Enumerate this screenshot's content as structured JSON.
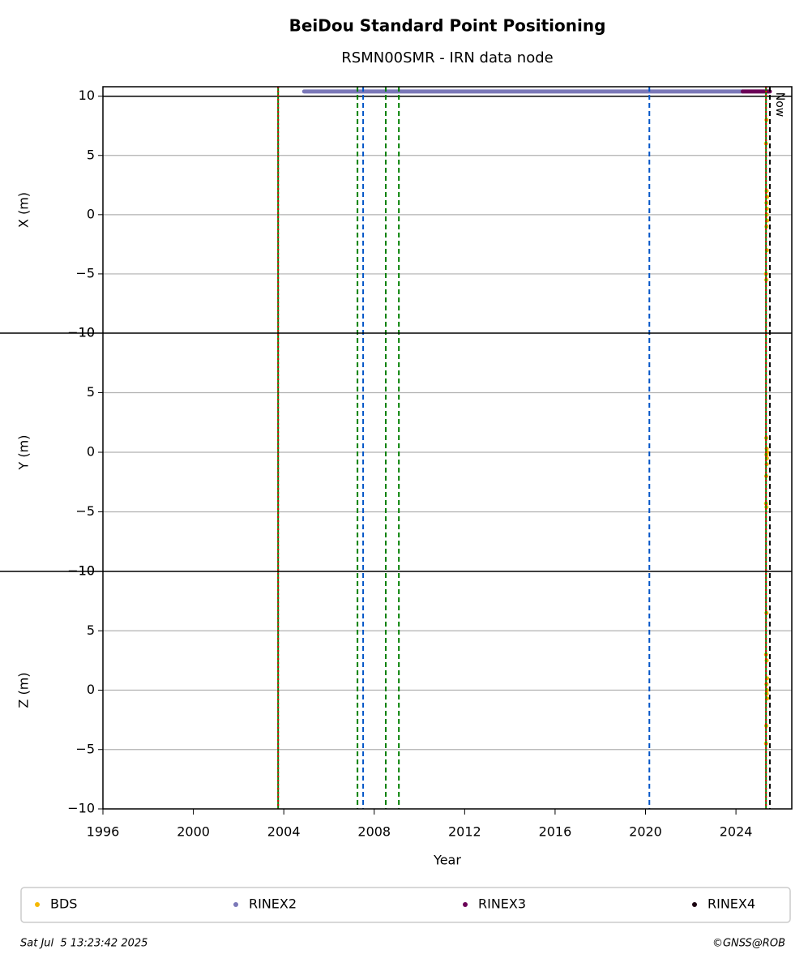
{
  "chart_data": {
    "type": "scatter",
    "title": "BeiDou Standard Point Positioning",
    "subtitle": "RSMN00SMR - IRN data node",
    "xlabel": "Year",
    "xlim": [
      1996,
      2026.47
    ],
    "xticks": [
      1996,
      2000,
      2004,
      2008,
      2012,
      2016,
      2020,
      2024
    ],
    "grid": true,
    "panels": [
      {
        "ylabel": "X (m)",
        "ylim": [
          -10,
          10.8
        ],
        "hlines": [
          10
        ],
        "yticks": [
          {
            "value": -10,
            "label": "−10"
          },
          {
            "value": -5,
            "label": "−5"
          },
          0,
          5,
          10
        ]
      },
      {
        "ylabel": "Y (m)",
        "ylim": [
          -10,
          10
        ],
        "hlines": [],
        "yticks": [
          {
            "value": -10,
            "label": "−10"
          },
          {
            "value": -5,
            "label": "−5"
          },
          0,
          5,
          10
        ]
      },
      {
        "ylabel": "Z (m)",
        "ylim": [
          -10,
          10
        ],
        "hlines": [],
        "yticks": [
          {
            "value": -10,
            "label": "−10"
          },
          {
            "value": -5,
            "label": "−5"
          },
          0,
          5,
          10
        ]
      }
    ],
    "series": [
      {
        "name": "BDS",
        "color": "#f5b800",
        "style": "points",
        "data": [
          {
            "x": [
              2025.35,
              2025.33,
              2025.36,
              2025.38,
              2025.35,
              2025.37,
              2025.36,
              2025.38,
              2025.35,
              2025.37,
              2025.33,
              2025.34
            ],
            "values": [
              8,
              6,
              2,
              1.5,
              1,
              0.5,
              0,
              -0.5,
              -1,
              -3,
              -5,
              -5.5
            ]
          },
          {
            "x": [
              2025.34,
              2025.36,
              2025.38,
              2025.35,
              2025.37,
              2025.36,
              2025.34,
              2025.33,
              2025.35
            ],
            "values": [
              1.2,
              0.3,
              0,
              -0.2,
              -0.5,
              -1,
              -2,
              -4.3,
              -4.6
            ]
          },
          {
            "x": [
              2025.35,
              2025.33,
              2025.36,
              2025.38,
              2025.35,
              2025.37,
              2025.36,
              2025.38,
              2025.34,
              2025.33
            ],
            "values": [
              6.5,
              3,
              2.5,
              1,
              0.5,
              0,
              -0.3,
              -0.7,
              -3,
              -4.5
            ]
          }
        ]
      },
      {
        "name": "RINEX2",
        "color": "#7b78b8",
        "style": "band",
        "data": [
          {
            "x": [
              2004.9,
              2024.3
            ],
            "values": [
              10.4,
              10.4
            ]
          },
          {
            "x": [],
            "values": []
          },
          {
            "x": [],
            "values": []
          }
        ]
      },
      {
        "name": "RINEX3",
        "color": "#6b0057",
        "style": "band",
        "data": [
          {
            "x": [
              2024.3,
              2025.5
            ],
            "values": [
              10.4,
              10.4
            ]
          },
          {
            "x": [],
            "values": []
          },
          {
            "x": [],
            "values": []
          }
        ]
      },
      {
        "name": "RINEX4",
        "color": "#1a0010",
        "style": "band",
        "data": [
          {
            "x": [],
            "values": []
          },
          {
            "x": [],
            "values": []
          },
          {
            "x": [],
            "values": []
          }
        ]
      }
    ],
    "vlines": [
      {
        "x": 2003.75,
        "color": "#008000",
        "dash": "solid"
      },
      {
        "x": 2003.75,
        "color": "#e00000",
        "dash": "dotted"
      },
      {
        "x": 2007.26,
        "color": "#008000",
        "dash": "dashed"
      },
      {
        "x": 2007.51,
        "color": "#0055c8",
        "dash": "dashed"
      },
      {
        "x": 2008.51,
        "color": "#008000",
        "dash": "dashed"
      },
      {
        "x": 2009.09,
        "color": "#008000",
        "dash": "dashed"
      },
      {
        "x": 2020.17,
        "color": "#0055c8",
        "dash": "dashed"
      },
      {
        "x": 2025.33,
        "color": "#008000",
        "dash": "solid"
      },
      {
        "x": 2025.33,
        "color": "#e00000",
        "dash": "dotted"
      },
      {
        "x": 2025.5,
        "color": "#000000",
        "dash": "dashed",
        "label": "Now"
      }
    ],
    "timestamp": "Sat Jul  5 13:23:42 2025",
    "credit": "©GNSS@ROB"
  }
}
